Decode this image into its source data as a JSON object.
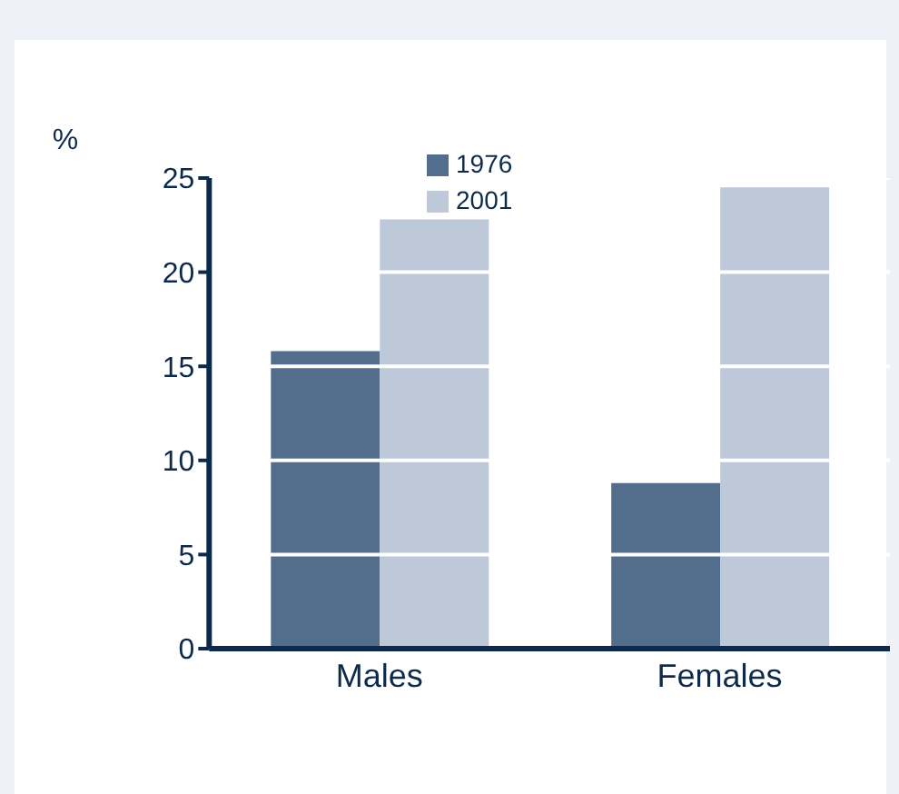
{
  "chart_data": {
    "type": "bar",
    "ylabel": "%",
    "categories": [
      "Males",
      "Females"
    ],
    "series": [
      {
        "name": "1976",
        "color": "#536d8c",
        "values": [
          15.8,
          8.8
        ]
      },
      {
        "name": "2001",
        "color": "#bdc9d8",
        "values": [
          22.8,
          24.5
        ]
      }
    ],
    "ylim": [
      0,
      25
    ],
    "yticks": [
      0,
      5,
      10,
      15,
      20,
      25
    ],
    "grid": "y",
    "legend": "top"
  }
}
